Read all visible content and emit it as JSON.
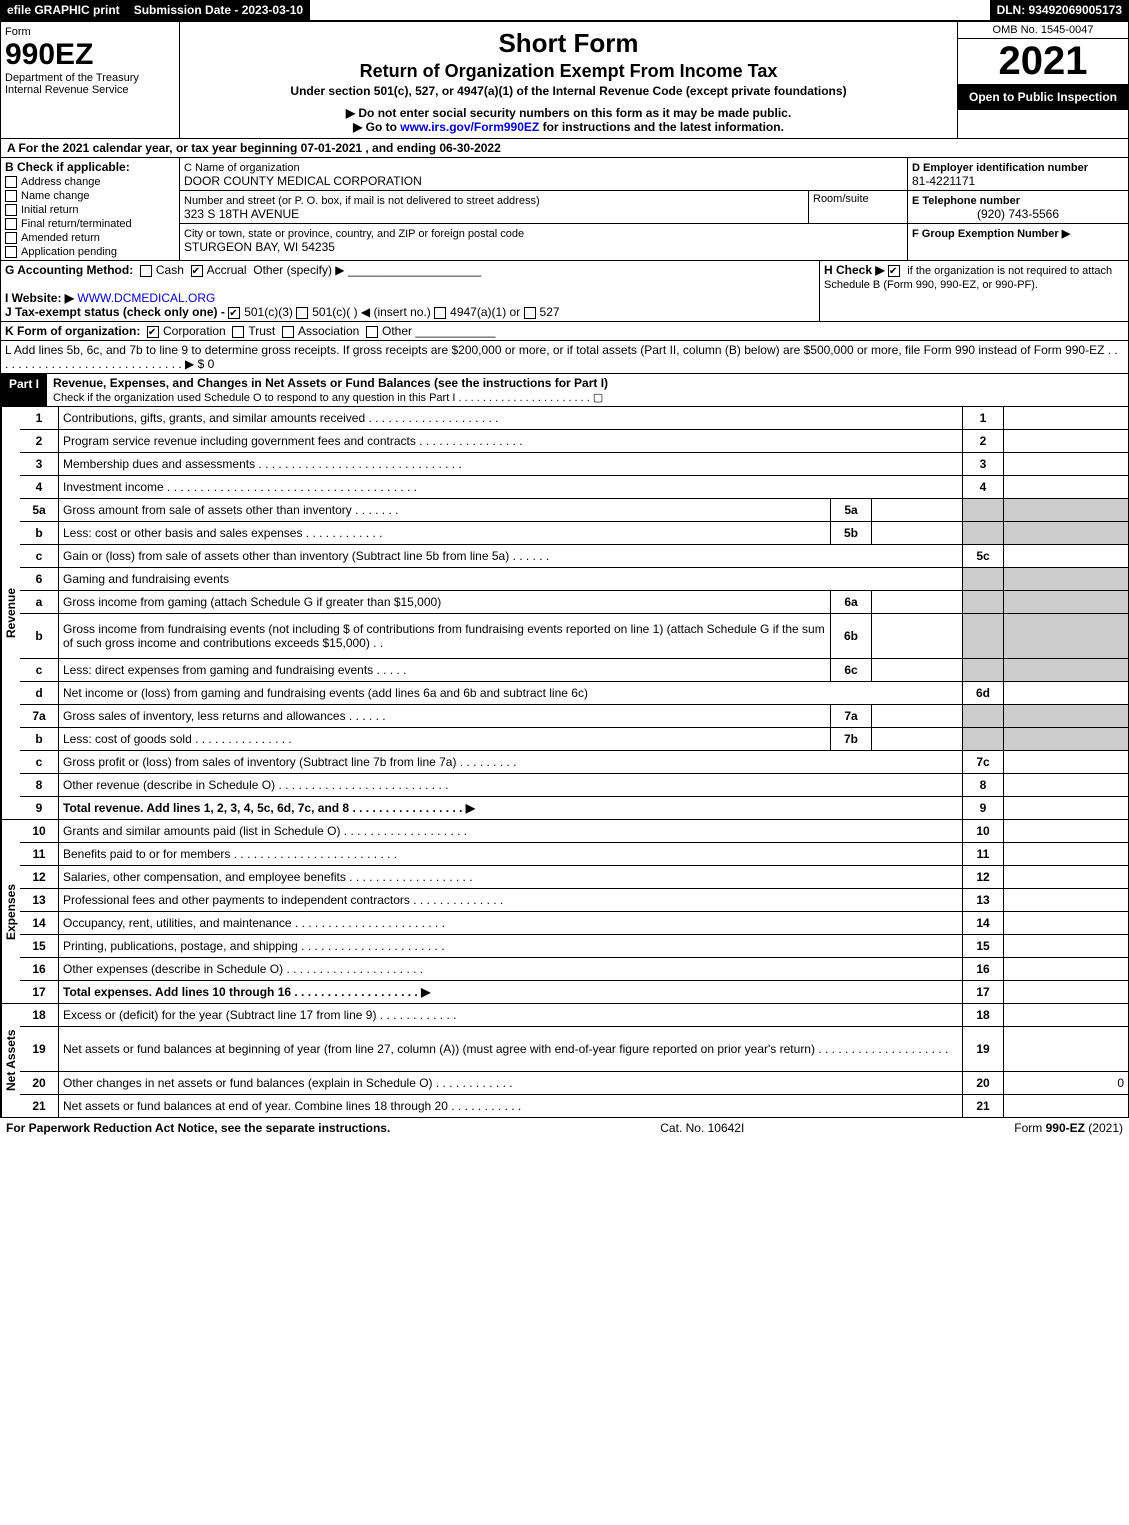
{
  "topbar": {
    "efile": "efile GRAPHIC print",
    "subdate": "Submission Date - 2023-03-10",
    "dln": "DLN: 93492069005173"
  },
  "header": {
    "form_label": "Form",
    "form_no": "990EZ",
    "dept": "Department of the Treasury\nInternal Revenue Service",
    "title1": "Short Form",
    "title2": "Return of Organization Exempt From Income Tax",
    "subtitle": "Under section 501(c), 527, or 4947(a)(1) of the Internal Revenue Code (except private foundations)",
    "note1": "▶ Do not enter social security numbers on this form as it may be made public.",
    "note2": "▶ Go to www.irs.gov/Form990EZ for instructions and the latest information.",
    "omb": "OMB No. 1545-0047",
    "year": "2021",
    "openpub": "Open to Public Inspection"
  },
  "A": "A  For the 2021 calendar year, or tax year beginning 07-01-2021 , and ending 06-30-2022",
  "B": {
    "label": "B  Check if applicable:",
    "opts": [
      "Address change",
      "Name change",
      "Initial return",
      "Final return/terminated",
      "Amended return",
      "Application pending"
    ]
  },
  "C": {
    "label": "C Name of organization",
    "name": "DOOR COUNTY MEDICAL CORPORATION",
    "street_label": "Number and street (or P. O. box, if mail is not delivered to street address)",
    "street": "323 S 18TH AVENUE",
    "room_label": "Room/suite",
    "city_label": "City or town, state or province, country, and ZIP or foreign postal code",
    "city": "STURGEON BAY, WI  54235"
  },
  "D": {
    "label": "D Employer identification number",
    "val": "81-4221171"
  },
  "E": {
    "label": "E Telephone number",
    "val": "(920) 743-5566"
  },
  "F": {
    "label": "F Group Exemption Number   ▶"
  },
  "G": {
    "label": "G Accounting Method:",
    "cash": "Cash",
    "accrual": "Accrual",
    "other": "Other (specify) ▶"
  },
  "H": {
    "label": "H   Check ▶",
    "txt": "if the organization is not required to attach Schedule B (Form 990, 990-EZ, or 990-PF)."
  },
  "I": {
    "label": "I Website: ▶",
    "val": "WWW.DCMEDICAL.ORG"
  },
  "J": {
    "label": "J Tax-exempt status (check only one) -",
    "o1": "501(c)(3)",
    "o2": "501(c)(  ) ◀ (insert no.)",
    "o3": "4947(a)(1) or",
    "o4": "527"
  },
  "K": {
    "label": "K Form of organization:",
    "opts": [
      "Corporation",
      "Trust",
      "Association",
      "Other"
    ]
  },
  "L": {
    "txt": "L Add lines 5b, 6c, and 7b to line 9 to determine gross receipts. If gross receipts are $200,000 or more, or if total assets (Part II, column (B) below) are $500,000 or more, file Form 990 instead of Form 990-EZ  .  .  .  .  .  .  .  .  .  .  .  .  .  .  .  .  .  .  .  .  .  .  .  .  .  .  .  .  . ▶ $ 0"
  },
  "part1": {
    "bar": "Part I",
    "title": "Revenue, Expenses, and Changes in Net Assets or Fund Balances (see the instructions for Part I)",
    "check": "Check if the organization used Schedule O to respond to any question in this Part I  .  .  .  .  .  .  .  .  .  .  .  .  .  .  .  .  .  .  .  .  .  .  ▢"
  },
  "sections": {
    "revenue_label": "Revenue",
    "expenses_label": "Expenses",
    "netassets_label": "Net Assets"
  },
  "lines": [
    {
      "n": "1",
      "t": "Contributions, gifts, grants, and similar amounts received  .  .  .  .  .  .  .  .  .  .  .  .  .  .  .  .  .  .  .  .",
      "r": "1",
      "v": ""
    },
    {
      "n": "2",
      "t": "Program service revenue including government fees and contracts  .  .  .  .  .  .  .  .  .  .  .  .  .  .  .  .",
      "r": "2",
      "v": ""
    },
    {
      "n": "3",
      "t": "Membership dues and assessments  .  .  .  .  .  .  .  .  .  .  .  .  .  .  .  .  .  .  .  .  .  .  .  .  .  .  .  .  .  .  .",
      "r": "3",
      "v": ""
    },
    {
      "n": "4",
      "t": "Investment income  .  .  .  .  .  .  .  .  .  .  .  .  .  .  .  .  .  .  .  .  .  .  .  .  .  .  .  .  .  .  .  .  .  .  .  .  .  .",
      "r": "4",
      "v": ""
    },
    {
      "n": "5a",
      "t": "Gross amount from sale of assets other than inventory  .  .  .  .  .  .  .",
      "sub": "5a",
      "shade": true
    },
    {
      "n": "b",
      "t": "Less: cost or other basis and sales expenses  .  .  .  .  .  .  .  .  .  .  .  .",
      "sub": "5b",
      "shade": true
    },
    {
      "n": "c",
      "t": "Gain or (loss) from sale of assets other than inventory (Subtract line 5b from line 5a)  .  .  .  .  .  .",
      "r": "5c",
      "v": ""
    },
    {
      "n": "6",
      "t": "Gaming and fundraising events",
      "noref": true
    },
    {
      "n": "a",
      "t": "Gross income from gaming (attach Schedule G if greater than $15,000)",
      "sub": "6a",
      "shade": true
    },
    {
      "n": "b",
      "t": "Gross income from fundraising events (not including $                          of contributions from fundraising events reported on line 1) (attach Schedule G if the sum of such gross income and contributions exceeds $15,000)   .  .",
      "sub": "6b",
      "shade": true,
      "tall": true
    },
    {
      "n": "c",
      "t": "Less: direct expenses from gaming and fundraising events  .  .  .  .  .",
      "sub": "6c",
      "shade": true
    },
    {
      "n": "d",
      "t": "Net income or (loss) from gaming and fundraising events (add lines 6a and 6b and subtract line 6c)",
      "r": "6d",
      "v": ""
    },
    {
      "n": "7a",
      "t": "Gross sales of inventory, less returns and allowances  .  .  .  .  .  .",
      "sub": "7a",
      "shade": true
    },
    {
      "n": "b",
      "t": "Less: cost of goods sold        .  .  .  .  .  .  .  .  .  .  .  .  .  .  .",
      "sub": "7b",
      "shade": true
    },
    {
      "n": "c",
      "t": "Gross profit or (loss) from sales of inventory (Subtract line 7b from line 7a)  .  .  .  .  .  .  .  .  .",
      "r": "7c",
      "v": ""
    },
    {
      "n": "8",
      "t": "Other revenue (describe in Schedule O)  .  .  .  .  .  .  .  .  .  .  .  .  .  .  .  .  .  .  .  .  .  .  .  .  .  .",
      "r": "8",
      "v": ""
    },
    {
      "n": "9",
      "t": "Total revenue. Add lines 1, 2, 3, 4, 5c, 6d, 7c, and 8   .  .  .  .  .  .  .  .  .  .  .  .  .  .  .  .  .  ▶",
      "r": "9",
      "v": "",
      "bold": true
    }
  ],
  "exp_lines": [
    {
      "n": "10",
      "t": "Grants and similar amounts paid (list in Schedule O)  .  .  .  .  .  .  .  .  .  .  .  .  .  .  .  .  .  .  .",
      "r": "10"
    },
    {
      "n": "11",
      "t": "Benefits paid to or for members        .  .  .  .  .  .  .  .  .  .  .  .  .  .  .  .  .  .  .  .  .  .  .  .  .",
      "r": "11"
    },
    {
      "n": "12",
      "t": "Salaries, other compensation, and employee benefits  .  .  .  .  .  .  .  .  .  .  .  .  .  .  .  .  .  .  .",
      "r": "12"
    },
    {
      "n": "13",
      "t": "Professional fees and other payments to independent contractors  .  .  .  .  .  .  .  .  .  .  .  .  .  .",
      "r": "13"
    },
    {
      "n": "14",
      "t": "Occupancy, rent, utilities, and maintenance .  .  .  .  .  .  .  .  .  .  .  .  .  .  .  .  .  .  .  .  .  .  .",
      "r": "14"
    },
    {
      "n": "15",
      "t": "Printing, publications, postage, and shipping .  .  .  .  .  .  .  .  .  .  .  .  .  .  .  .  .  .  .  .  .  .",
      "r": "15"
    },
    {
      "n": "16",
      "t": "Other expenses (describe in Schedule O)      .  .  .  .  .  .  .  .  .  .  .  .  .  .  .  .  .  .  .  .  .",
      "r": "16"
    },
    {
      "n": "17",
      "t": "Total expenses. Add lines 10 through 16       .  .  .  .  .  .  .  .  .  .  .  .  .  .  .  .  .  .  .  ▶",
      "r": "17",
      "bold": true
    }
  ],
  "na_lines": [
    {
      "n": "18",
      "t": "Excess or (deficit) for the year (Subtract line 17 from line 9)        .  .  .  .  .  .  .  .  .  .  .  .",
      "r": "18"
    },
    {
      "n": "19",
      "t": "Net assets or fund balances at beginning of year (from line 27, column (A)) (must agree with end-of-year figure reported on prior year's return) .  .  .  .  .  .  .  .  .  .  .  .  .  .  .  .  .  .  .  .",
      "r": "19",
      "tall": true
    },
    {
      "n": "20",
      "t": "Other changes in net assets or fund balances (explain in Schedule O)  .  .  .  .  .  .  .  .  .  .  .  .",
      "r": "20",
      "v": "0"
    },
    {
      "n": "21",
      "t": "Net assets or fund balances at end of year. Combine lines 18 through 20 .  .  .  .  .  .  .  .  .  .  .",
      "r": "21"
    }
  ],
  "footer": {
    "left": "For Paperwork Reduction Act Notice, see the separate instructions.",
    "mid": "Cat. No. 10642I",
    "right": "Form 990-EZ (2021)"
  }
}
